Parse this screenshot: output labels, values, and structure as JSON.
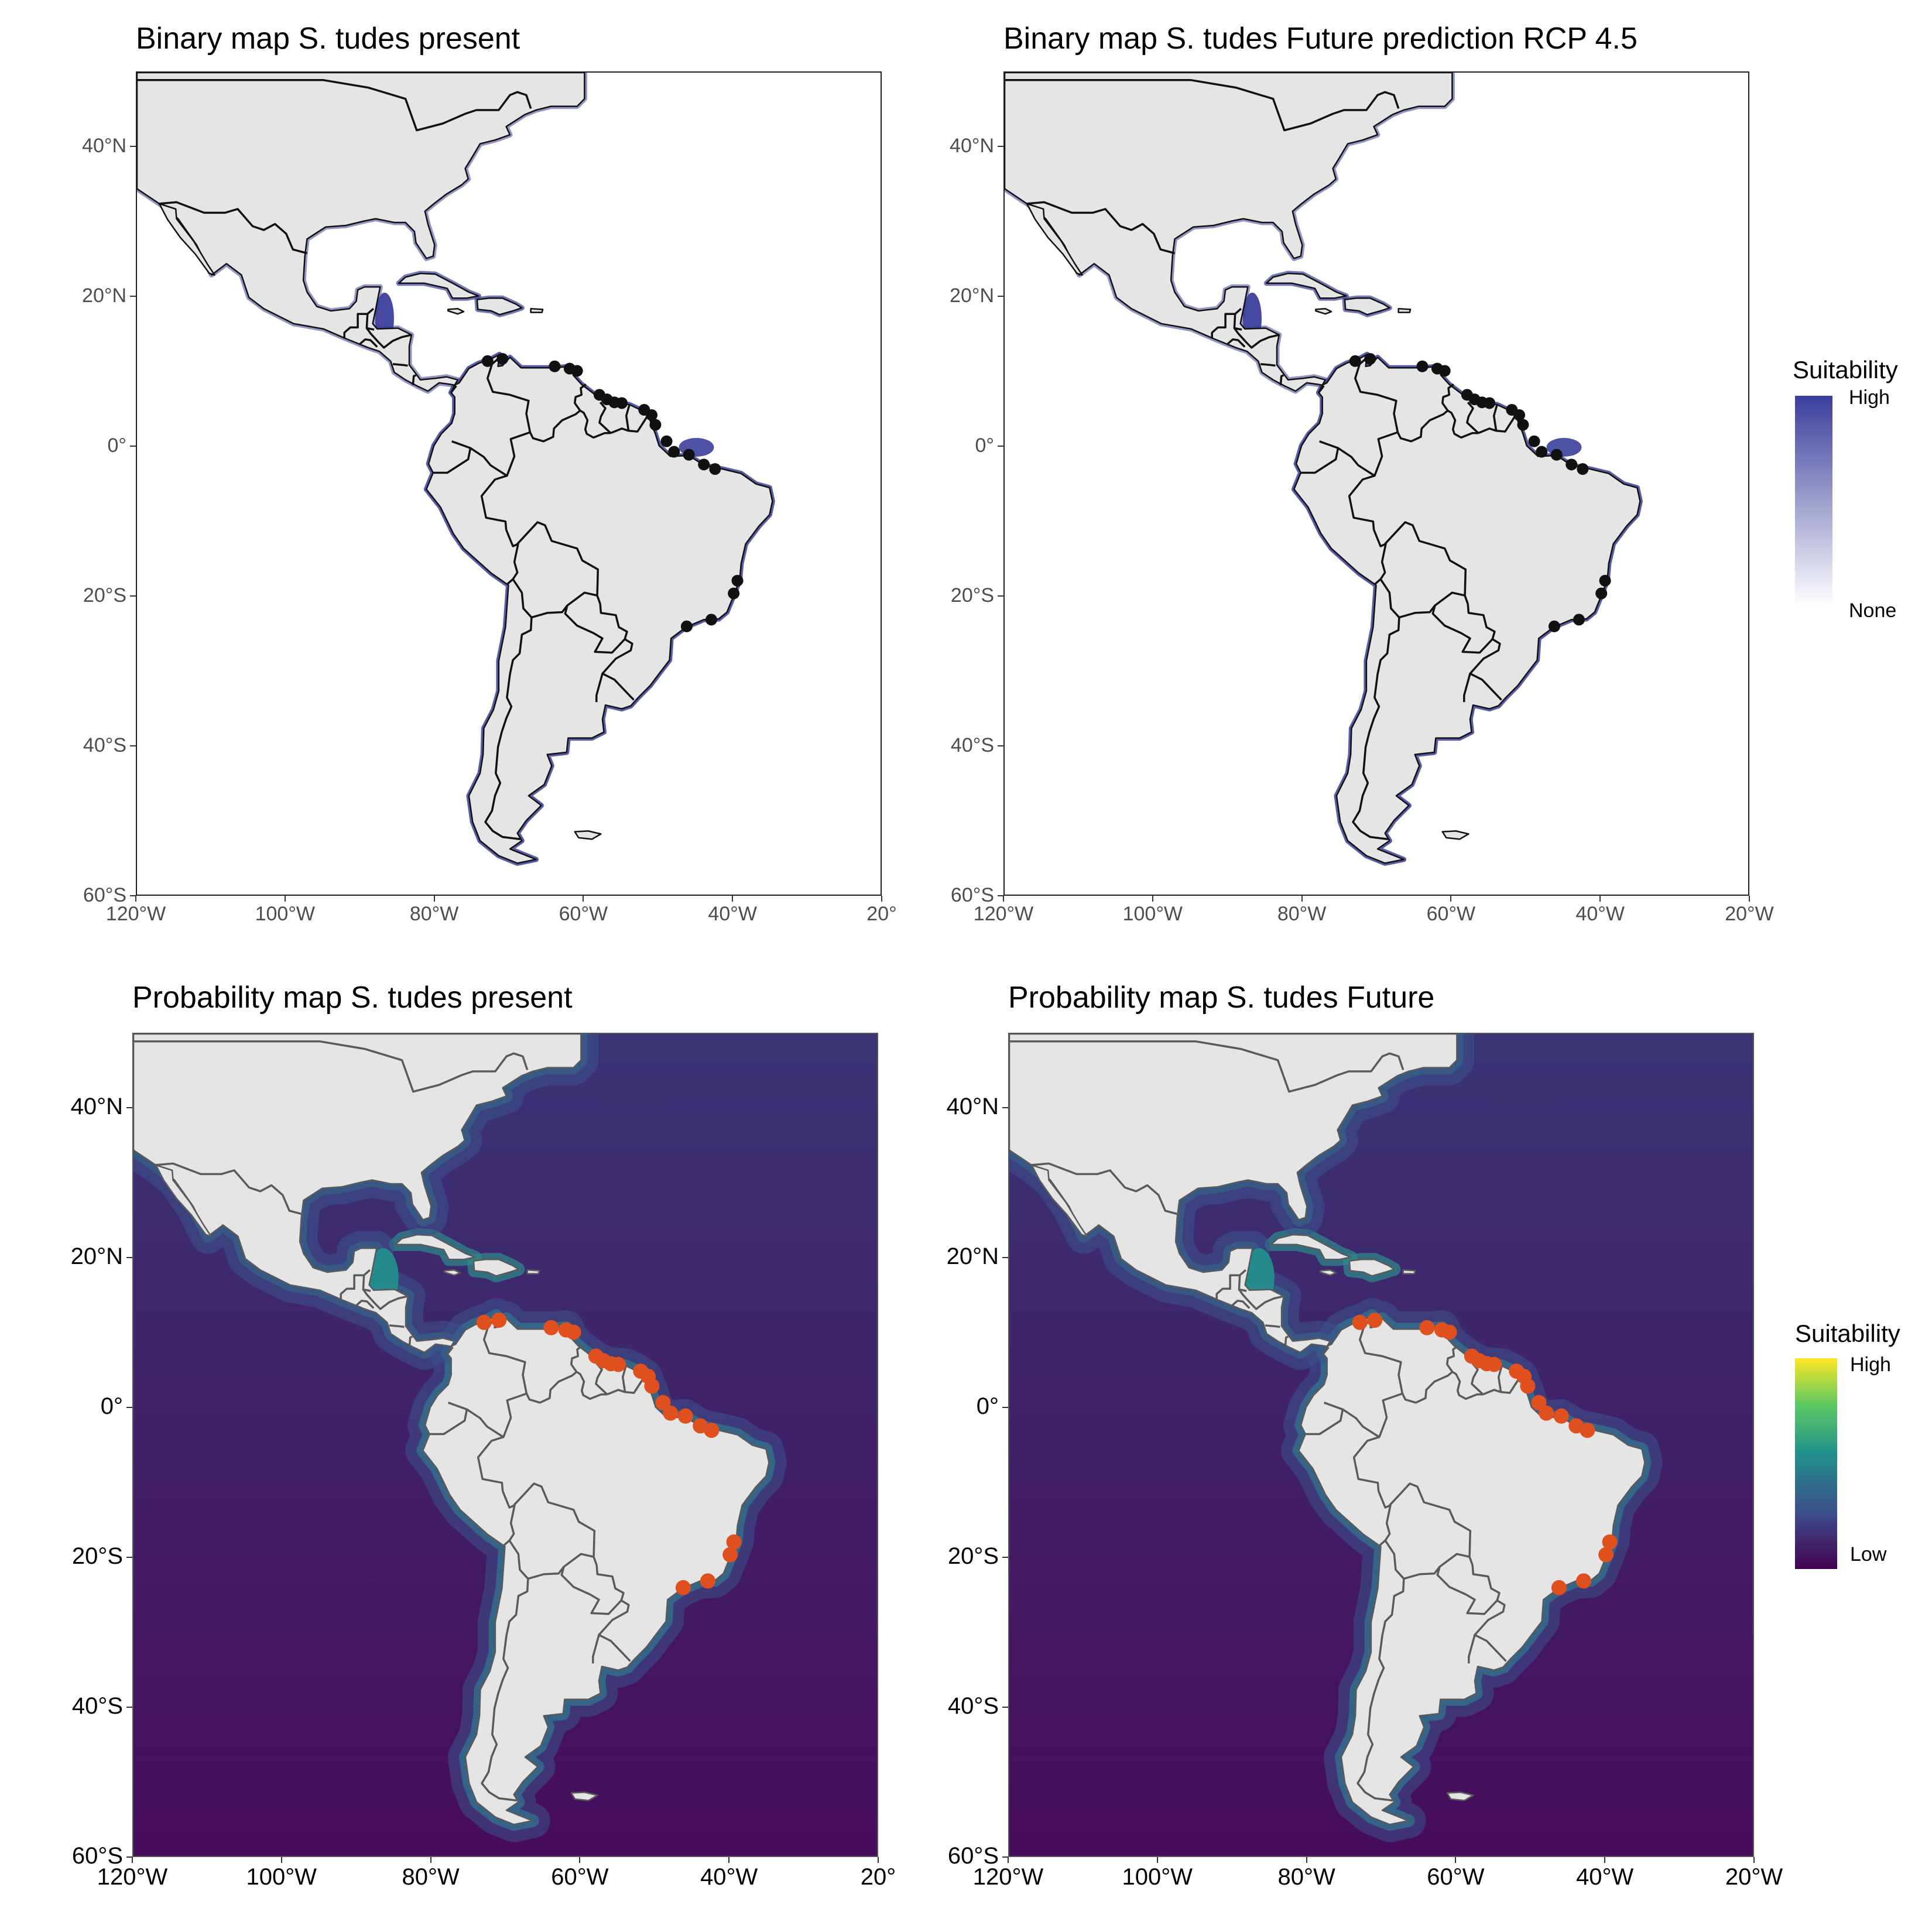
{
  "panels": [
    {
      "title": "Binary map S. tudes present"
    },
    {
      "title": "Binary map S. tudes Future prediction RCP 4.5"
    },
    {
      "title": "Probability map S. tudes present"
    },
    {
      "title": "Probability map S. tudes Future"
    }
  ],
  "axes": {
    "lat_labels": [
      "40°N",
      "20°N",
      "0°",
      "20°S",
      "40°S",
      "60°S"
    ],
    "lon_labels": [
      "120°W",
      "100°W",
      "80°W",
      "60°W",
      "40°W",
      "20°W"
    ],
    "lon_labels_clipped": [
      "120°W",
      "100°W",
      "80°W",
      "60°W",
      "40°W",
      "20°"
    ],
    "lat_range": [
      -60,
      50
    ],
    "lon_range": [
      -120,
      -20
    ]
  },
  "legends": {
    "binary": {
      "title": "Suitability",
      "high": "High",
      "none": "None",
      "color_high": "#3b3f9b",
      "color_none": "#ffffff"
    },
    "probability": {
      "title": "Suitability",
      "high": "High",
      "low": "Low",
      "colors": [
        "#fde725",
        "#5ec962",
        "#21918c",
        "#3b528b",
        "#440154"
      ]
    }
  },
  "colors": {
    "land": "#e5e5e5",
    "binary_suitable": "#3b3f9b",
    "occurrence_binary": "#111111",
    "occurrence_prob": "#e0501e",
    "ocean_prob_top": "#3a3475",
    "ocean_prob_bottom": "#470c5c"
  },
  "occurrences": [
    {
      "lon": -73,
      "lat": 11.5
    },
    {
      "lon": -71,
      "lat": 11.8
    },
    {
      "lon": -64,
      "lat": 10.8
    },
    {
      "lon": -62,
      "lat": 10.5
    },
    {
      "lon": -61,
      "lat": 10.2
    },
    {
      "lon": -58,
      "lat": 7.0
    },
    {
      "lon": -57,
      "lat": 6.4
    },
    {
      "lon": -56,
      "lat": 6.0
    },
    {
      "lon": -55,
      "lat": 5.9
    },
    {
      "lon": -52,
      "lat": 5.0
    },
    {
      "lon": -51,
      "lat": 4.3
    },
    {
      "lon": -50.5,
      "lat": 3.0
    },
    {
      "lon": -49,
      "lat": 0.8
    },
    {
      "lon": -48,
      "lat": -0.6
    },
    {
      "lon": -46,
      "lat": -1.0
    },
    {
      "lon": -44,
      "lat": -2.3
    },
    {
      "lon": -42.5,
      "lat": -2.9
    },
    {
      "lon": -39.5,
      "lat": -17.8
    },
    {
      "lon": -40,
      "lat": -19.5
    },
    {
      "lon": -43,
      "lat": -23.0
    },
    {
      "lon": -46.3,
      "lat": -23.9
    }
  ]
}
